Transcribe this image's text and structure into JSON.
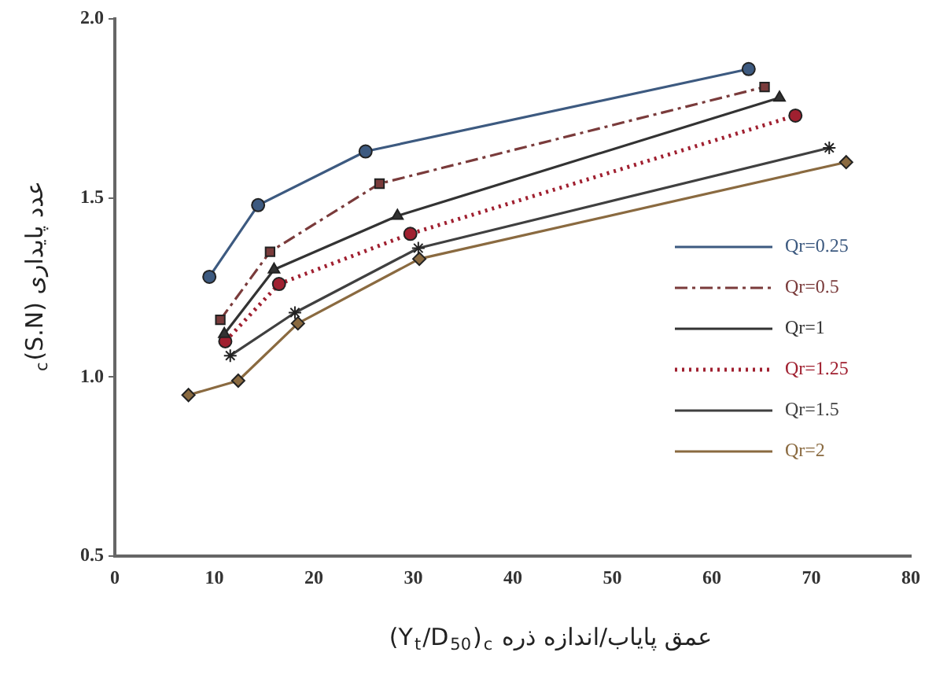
{
  "chart_data": {
    "type": "line",
    "xlabel": "عمق پایاب/اندازه ذره (Y$_{t}$/D$_{50}$)$_{c}$",
    "ylabel": "عدد پایداری (S.N)$_{c}$",
    "xlim": [
      0,
      80
    ],
    "xticks": [
      0,
      10,
      20,
      30,
      40,
      50,
      60,
      70,
      80
    ],
    "ylim": [
      0.5,
      2.0
    ],
    "yticks": [
      {
        "value": 0.5,
        "label": "0.5"
      },
      {
        "value": 1.0,
        "label": "1.0"
      },
      {
        "value": 1.5,
        "label": "1.5"
      },
      {
        "value": 2.0,
        "label": "2.0"
      }
    ],
    "grid": false,
    "legend": "right",
    "series": [
      {
        "name": "Qr=0.25",
        "color": "#3d5a80",
        "marker": "circle",
        "line_style": "solid",
        "x": [
          9.5,
          14.4,
          25.2,
          63.7
        ],
        "values": [
          1.28,
          1.48,
          1.63,
          1.86
        ]
      },
      {
        "name": "Qr=0.5",
        "color": "#7a3b3b",
        "marker": "square",
        "line_style": "dashdot",
        "x": [
          10.6,
          15.6,
          26.6,
          65.3
        ],
        "values": [
          1.16,
          1.35,
          1.54,
          1.81
        ]
      },
      {
        "name": "Qr=1",
        "color": "#333333",
        "marker": "triangle",
        "line_style": "solid",
        "x": [
          11,
          16,
          28.4,
          66.8
        ],
        "values": [
          1.12,
          1.3,
          1.45,
          1.78
        ]
      },
      {
        "name": "Qr=1.25",
        "color": "#a02030",
        "marker": "circle",
        "line_style": "dotted",
        "x": [
          11.1,
          16.5,
          29.7,
          68.4
        ],
        "values": [
          1.1,
          1.26,
          1.4,
          1.73
        ]
      },
      {
        "name": "Qr=1.5",
        "color": "#404040",
        "marker": "cross",
        "line_style": "solid",
        "x": [
          11.6,
          18.1,
          30.5,
          71.8
        ],
        "values": [
          1.06,
          1.18,
          1.36,
          1.64
        ]
      },
      {
        "name": "Qr=2",
        "color": "#8a6a40",
        "marker": "diamond",
        "line_style": "solid",
        "x": [
          7.4,
          12.4,
          18.4,
          30.6,
          73.5
        ],
        "values": [
          0.95,
          0.99,
          1.15,
          1.33,
          1.6
        ]
      }
    ]
  }
}
